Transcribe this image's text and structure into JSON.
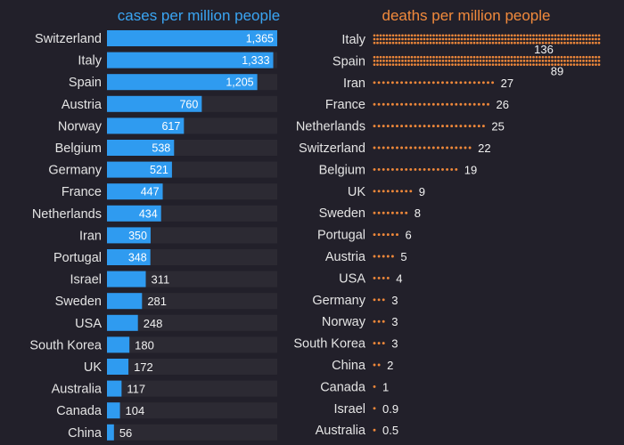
{
  "colors": {
    "background": "#22202a",
    "cases_bar": "#2f9bf0",
    "cases_title": "#3aa5f3",
    "deaths_dot": "#f0883a",
    "deaths_title": "#f28a3c",
    "label_text": "#e4e4e4"
  },
  "chart_data": [
    {
      "type": "bar",
      "title": "cases per million people",
      "categories": [
        "Switzerland",
        "Italy",
        "Spain",
        "Austria",
        "Norway",
        "Belgium",
        "Germany",
        "France",
        "Netherlands",
        "Iran",
        "Portugal",
        "Israel",
        "Sweden",
        "USA",
        "South Korea",
        "UK",
        "Australia",
        "Canada",
        "China"
      ],
      "values": [
        1365,
        1333,
        1205,
        760,
        617,
        538,
        521,
        447,
        434,
        350,
        348,
        311,
        281,
        248,
        180,
        172,
        117,
        104,
        56
      ],
      "value_labels": [
        "1,365",
        "1,333",
        "1,205",
        "760",
        "617",
        "538",
        "521",
        "447",
        "434",
        "350",
        "348",
        "311",
        "281",
        "248",
        "180",
        "172",
        "117",
        "104",
        "56"
      ]
    },
    {
      "type": "bar",
      "title": "deaths per million people",
      "categories": [
        "Italy",
        "Spain",
        "Iran",
        "France",
        "Netherlands",
        "Switzerland",
        "Belgium",
        "UK",
        "Sweden",
        "Portugal",
        "Austria",
        "USA",
        "Germany",
        "Norway",
        "South Korea",
        "China",
        "Canada",
        "Israel",
        "Australia"
      ],
      "values": [
        136,
        89,
        27,
        26,
        25,
        22,
        19,
        9,
        8,
        6,
        5,
        4,
        3,
        3,
        3,
        2,
        1,
        0.9,
        0.5
      ],
      "value_labels": [
        "136",
        "89",
        "27",
        "26",
        "25",
        "22",
        "19",
        "9",
        "8",
        "6",
        "5",
        "4",
        "3",
        "3",
        "3",
        "2",
        "1",
        "0.9",
        "0.5"
      ]
    }
  ]
}
